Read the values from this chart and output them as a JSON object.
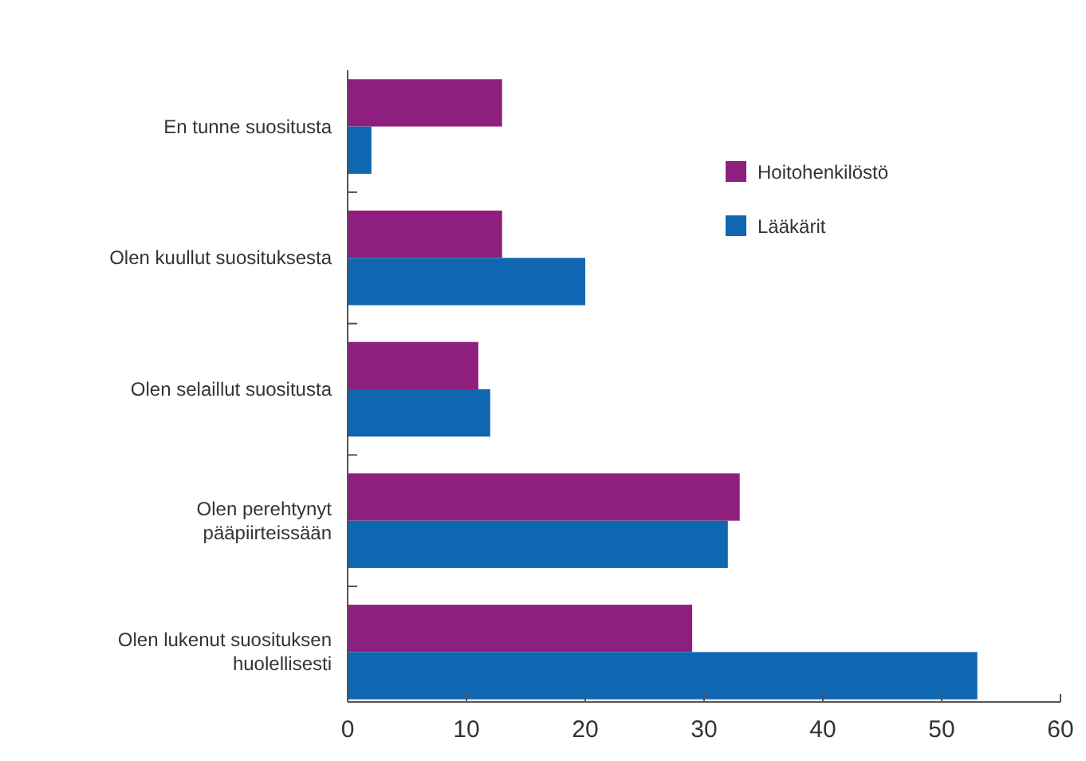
{
  "chart_data": {
    "type": "bar",
    "orientation": "horizontal",
    "categories": [
      "En tunne suositusta",
      "Olen kuullut suosituksesta",
      "Olen selaillut suositusta",
      "Olen perehtynyt\npääpiirteissään",
      "Olen lukenut suosituksen\nhuolellisesti"
    ],
    "series": [
      {
        "name": "Hoitohenkilöstö",
        "color": "#8e1f7e",
        "values": [
          13,
          13,
          11,
          33,
          29
        ]
      },
      {
        "name": "Lääkärit",
        "color": "#0f67b1",
        "values": [
          2,
          20,
          12,
          32,
          53
        ]
      }
    ],
    "xlim": [
      0,
      60
    ],
    "xticks": [
      0,
      10,
      20,
      30,
      40,
      50,
      60
    ],
    "grid": false,
    "legend": "top right"
  }
}
